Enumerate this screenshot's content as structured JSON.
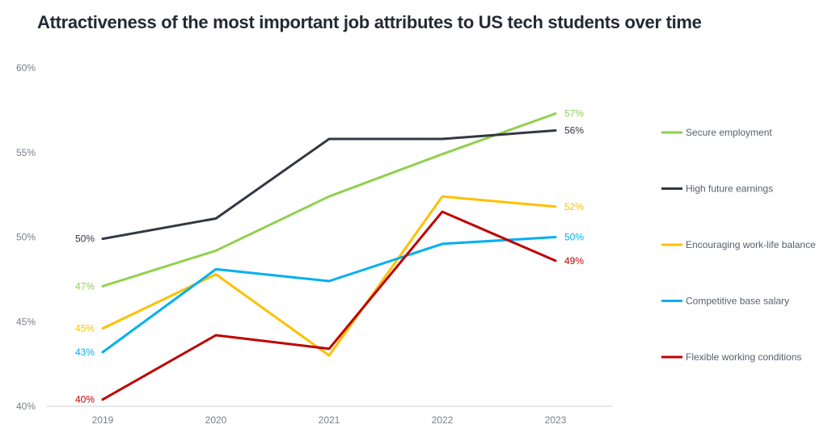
{
  "chart_data": {
    "type": "line",
    "title": "Attractiveness of the most important job attributes to US tech students over time",
    "xlabel": "",
    "ylabel": "",
    "x": [
      "2019",
      "2020",
      "2021",
      "2022",
      "2023"
    ],
    "ylim": [
      40,
      60
    ],
    "yticks": [
      "40%",
      "45%",
      "50%",
      "55%",
      "60%"
    ],
    "grid": false,
    "legend_position": "right",
    "series": [
      {
        "name": "Secure employment",
        "color": "#92d050",
        "values": [
          47.1,
          49.2,
          52.4,
          54.9,
          57.3
        ],
        "start_label": "47%",
        "end_label": "57%"
      },
      {
        "name": "High future earnings",
        "color": "#333842",
        "values": [
          49.9,
          51.1,
          55.8,
          55.8,
          56.3
        ],
        "start_label": "50%",
        "end_label": "56%"
      },
      {
        "name": "Encouraging work-life balance",
        "color": "#ffc000",
        "values": [
          44.6,
          47.8,
          43.0,
          52.4,
          51.8
        ],
        "start_label": "45%",
        "end_label": "52%"
      },
      {
        "name": "Competitive base salary",
        "color": "#00b0f0",
        "values": [
          43.2,
          48.1,
          47.4,
          49.6,
          50.0
        ],
        "start_label": "43%",
        "end_label": "50%"
      },
      {
        "name": "Flexible working conditions",
        "color": "#c00000",
        "values": [
          40.4,
          44.2,
          43.4,
          51.5,
          48.6
        ],
        "start_label": "40%",
        "end_label": "49%"
      }
    ]
  }
}
